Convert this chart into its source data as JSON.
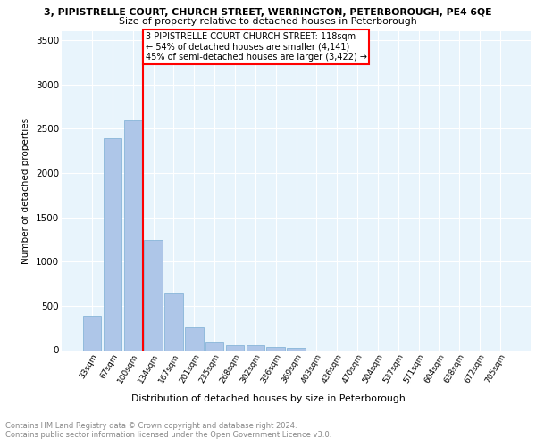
{
  "title1": "3, PIPISTRELLE COURT, CHURCH STREET, WERRINGTON, PETERBOROUGH, PE4 6QE",
  "title2": "Size of property relative to detached houses in Peterborough",
  "xlabel": "Distribution of detached houses by size in Peterborough",
  "ylabel": "Number of detached properties",
  "bar_labels": [
    "33sqm",
    "67sqm",
    "100sqm",
    "134sqm",
    "167sqm",
    "201sqm",
    "235sqm",
    "268sqm",
    "302sqm",
    "336sqm",
    "369sqm",
    "403sqm",
    "436sqm",
    "470sqm",
    "504sqm",
    "537sqm",
    "571sqm",
    "604sqm",
    "638sqm",
    "672sqm",
    "705sqm"
  ],
  "bar_values": [
    390,
    2390,
    2590,
    1240,
    640,
    260,
    100,
    55,
    55,
    40,
    25,
    0,
    0,
    0,
    0,
    0,
    0,
    0,
    0,
    0,
    0
  ],
  "bar_color": "#aec6e8",
  "bar_edge_color": "#7aadd4",
  "vline_color": "red",
  "annotation_text": "3 PIPISTRELLE COURT CHURCH STREET: 118sqm\n← 54% of detached houses are smaller (4,141)\n45% of semi-detached houses are larger (3,422) →",
  "annotation_box_color": "white",
  "annotation_box_edge_color": "red",
  "ylim": [
    0,
    3600
  ],
  "yticks": [
    0,
    500,
    1000,
    1500,
    2000,
    2500,
    3000,
    3500
  ],
  "background_color": "#e8f4fc",
  "footer1": "Contains HM Land Registry data © Crown copyright and database right 2024.",
  "footer2": "Contains public sector information licensed under the Open Government Licence v3.0."
}
